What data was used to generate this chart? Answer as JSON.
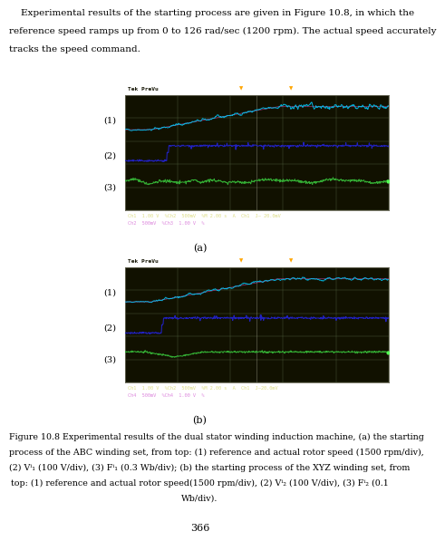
{
  "paragraph_line1": "    Experimental results of the starting process are given in Figure 10.8, in which the",
  "paragraph_line2": "reference speed ramps up from 0 to 126 rad/sec (1200 rpm). The actual speed accurately",
  "paragraph_line3": "tracks the speed command.",
  "page_number": "366",
  "label_a": "(a)",
  "label_b": "(b)",
  "scope_label": "Tek PreVu",
  "status_line1_a": "Ch1  1.00 V  %Ch2  500mV  %M 2.00 s  A  Ch1  J– 20.0mV",
  "status_line2_a": "Ch2  500mV  %Ch3  1.00 V  %",
  "status_line1_b": "Ch1  1.00 V  %Ch2  500mV  %M 2.00 s  A  Ch1  J–20.0mV",
  "status_line2_b": "Ch4  500mV  %Ch4  1.00 V  %",
  "scope_bg": "#111100",
  "grid_color": "#556644",
  "line1_color": "#00ccff",
  "line2_color": "#2222cc",
  "line3_color": "#33aa33",
  "ref_color": "#dd44aa",
  "header_bg": "#aaaaaa",
  "status_bg": "#0a0a00",
  "caption_text_1": "Figure 10.8 Experimental results of the dual stator winding induction machine, (a) the starting",
  "caption_text_2": "process of the ABC winding set, from top: (1) reference and actual rotor speed (1500 rpm/div),",
  "caption_text_3": "(2) Vⁱ₁ (100 V/div), (3) Fⁱ₁ (0.3 Wb/div); (b) the starting process of the XYZ winding set, from",
  "caption_text_4": "top: (1) reference and actual rotor speed(1500 rpm/div), (2) Vⁱ₂ (100 V/div), (3) Fⁱ₂ (0.1",
  "caption_text_5": "Wb/div)."
}
